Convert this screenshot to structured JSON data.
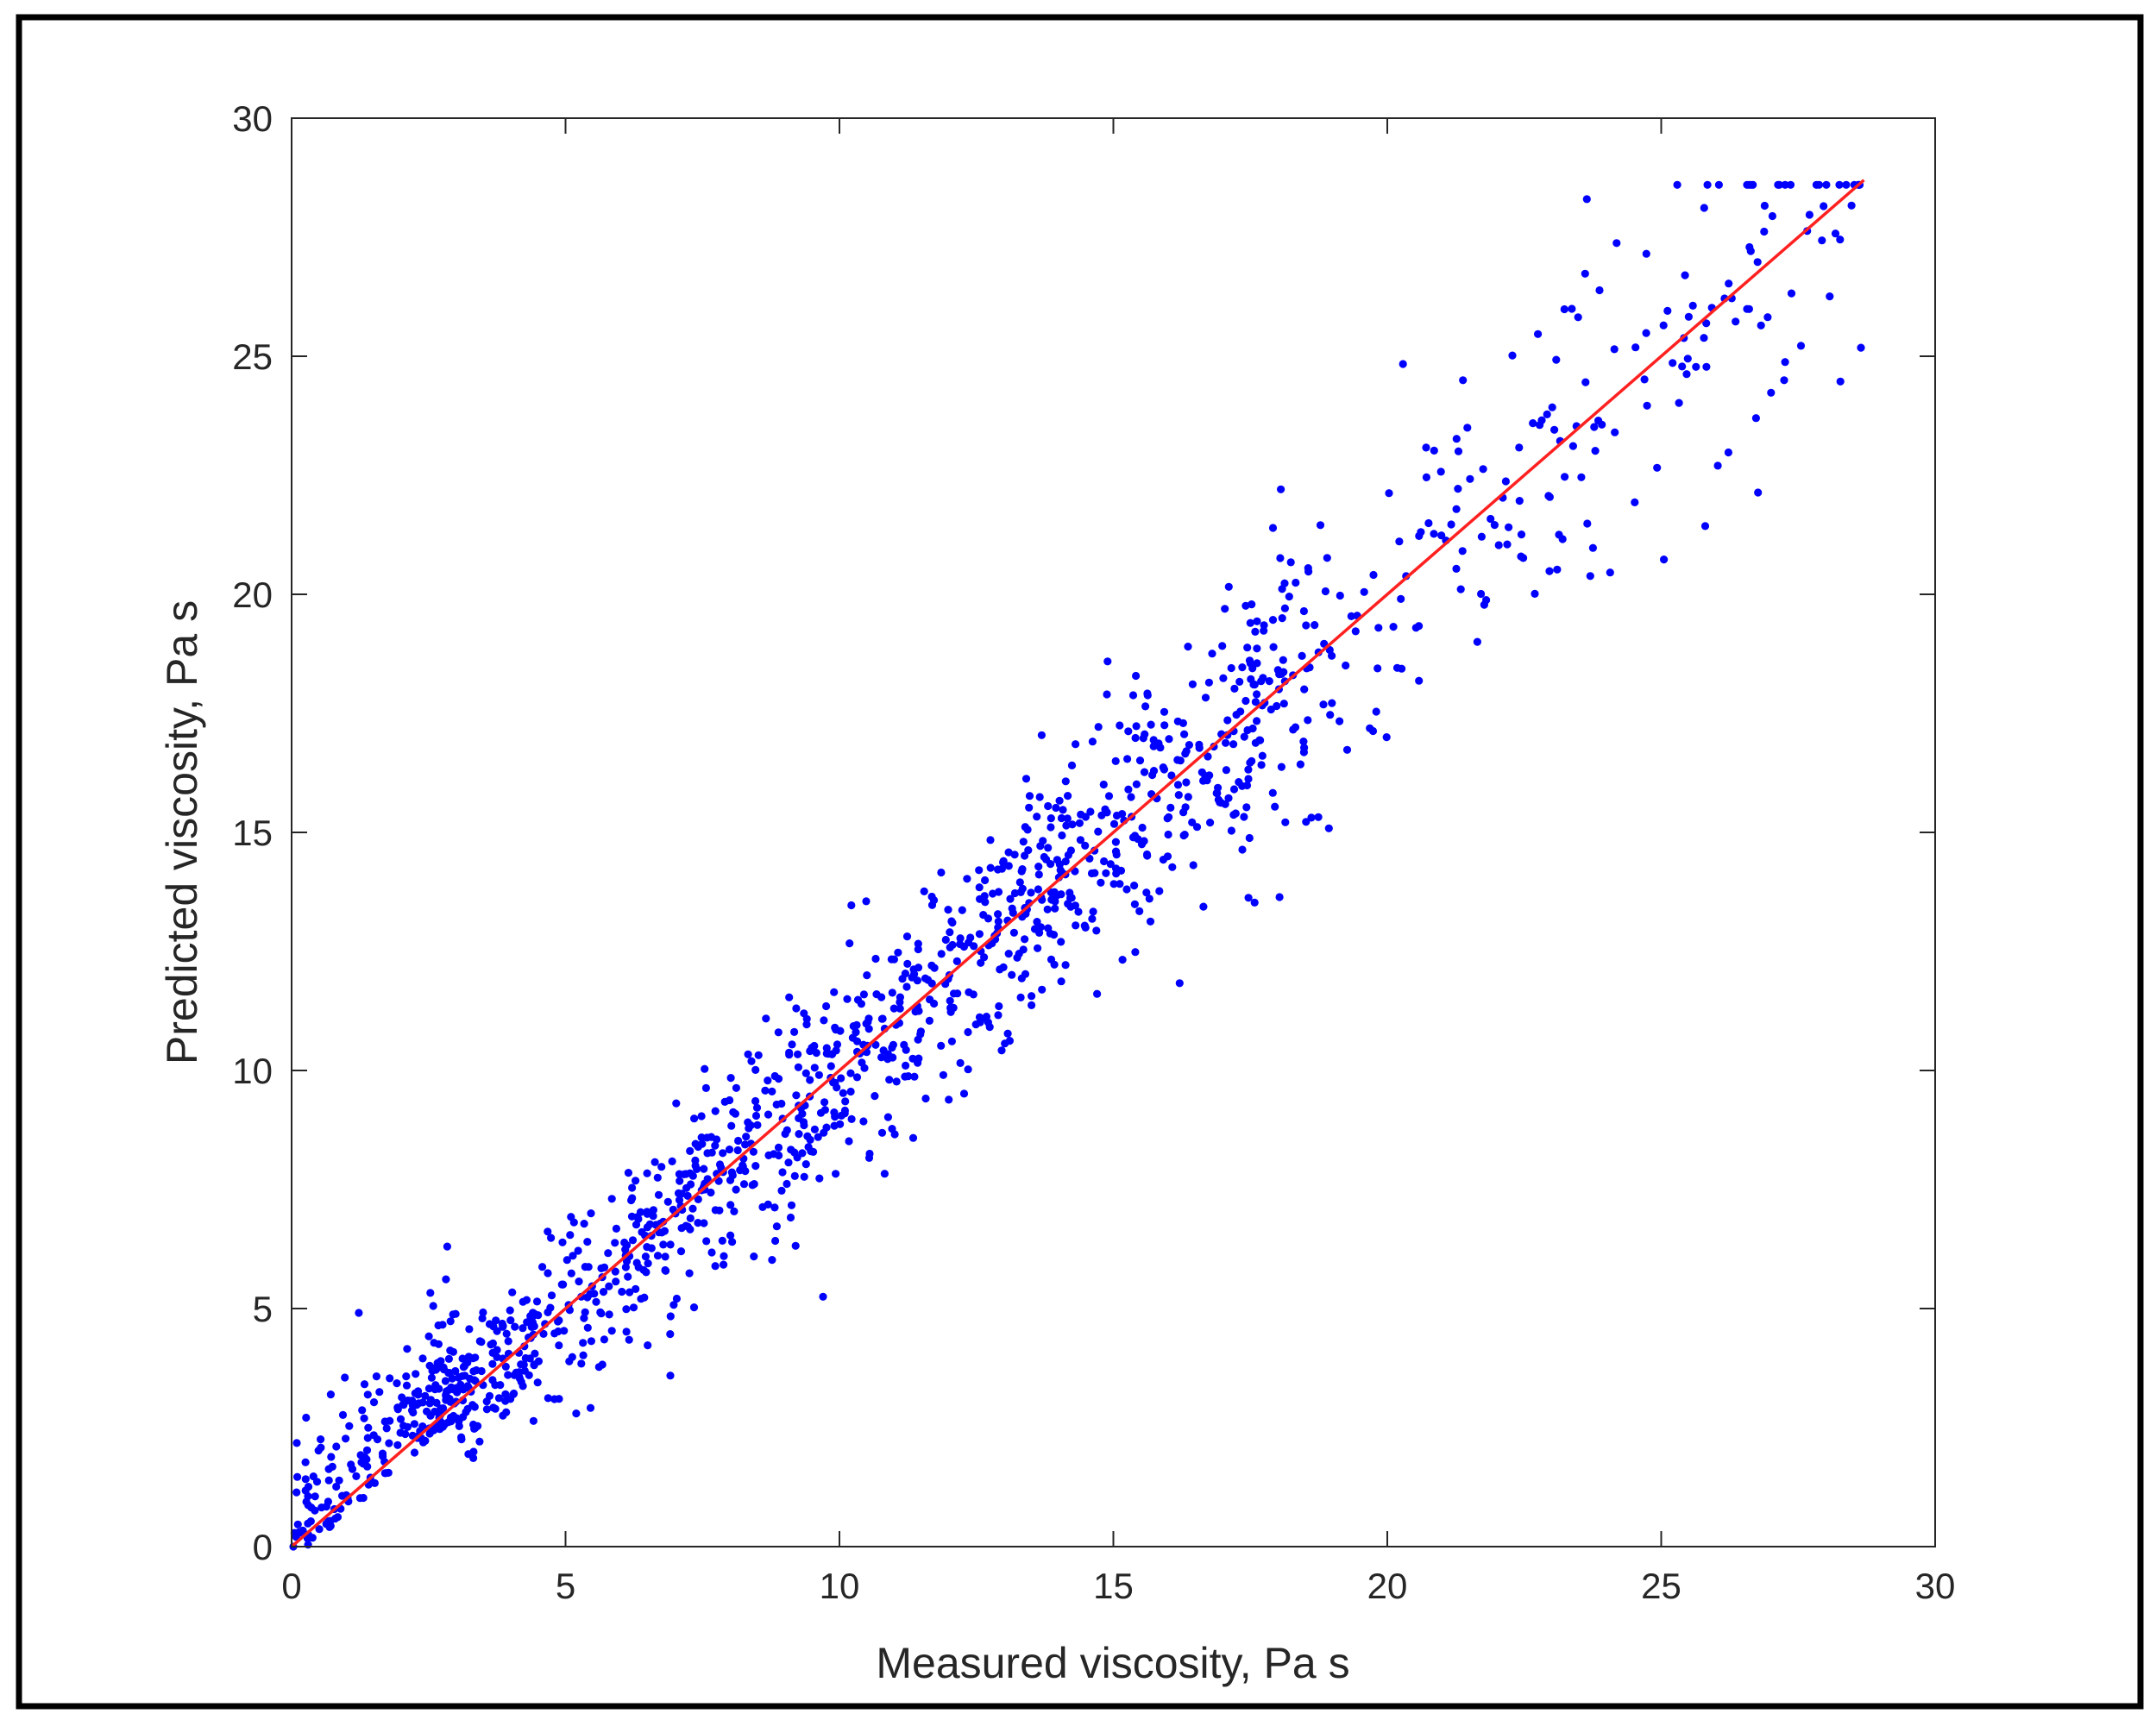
{
  "chart_data": {
    "type": "scatter",
    "xlabel": "Measured viscosity, Pa s",
    "ylabel": "Predicted viscosity, Pa s",
    "xlim": [
      0,
      30
    ],
    "ylim": [
      0,
      30
    ],
    "xticks": [
      "0",
      "5",
      "10",
      "15",
      "20",
      "25",
      "30"
    ],
    "yticks": [
      "0",
      "5",
      "10",
      "15",
      "20",
      "25",
      "30"
    ],
    "grid": false,
    "legend": "none",
    "series": [
      {
        "kind": "points",
        "color": "#0000ff",
        "count": 1450,
        "x_range": [
          0,
          28.7
        ],
        "y_range": [
          0,
          28.6
        ],
        "approx_relation": "y ≈ x with scatter"
      },
      {
        "kind": "fit-line",
        "color": "#ff2020",
        "x": [
          0,
          28.7
        ],
        "y": [
          0,
          28.7
        ]
      }
    ]
  }
}
